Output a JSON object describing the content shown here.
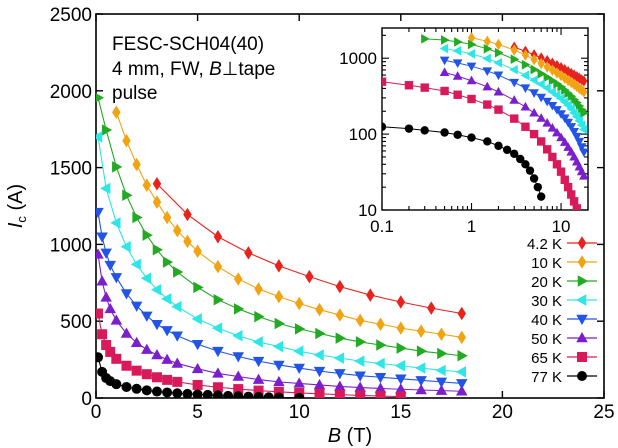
{
  "chart_data": [
    {
      "type": "line",
      "panel": "main",
      "xlabel_italic": "B",
      "xlabel_rest": " (T)",
      "ylabel_italic": "I",
      "ylabel_sub": "c",
      "ylabel_rest": " (A)",
      "xlim": [
        0,
        25
      ],
      "ylim": [
        0,
        2500
      ],
      "xticks": [
        0,
        5,
        10,
        15,
        20,
        25
      ],
      "yticks": [
        0,
        500,
        1000,
        1500,
        2000,
        2500
      ],
      "annotation": [
        "FESC-SCH04(40)",
        "4 mm, FW, ",
        "B",
        "⊥tape",
        "pulse"
      ],
      "legend_position": "bottom-right",
      "series": [
        {
          "name": "4.2 K",
          "color": "#e8231c",
          "marker": "diamond",
          "x": [
            3.0,
            4.5,
            6.0,
            7.5,
            9.0,
            10.5,
            12.0,
            13.5,
            15.0,
            16.5,
            18.0
          ],
          "y": [
            1395,
            1195,
            1050,
            945,
            860,
            790,
            725,
            670,
            625,
            585,
            550
          ]
        },
        {
          "name": "10 K",
          "color": "#f2a311",
          "marker": "diamond",
          "x": [
            1.0,
            1.5,
            2.0,
            2.5,
            3.0,
            3.5,
            4.0,
            4.5,
            5.0,
            6.0,
            7.0,
            8.0,
            9.0,
            10.0,
            11.0,
            12.0,
            13.0,
            14.0,
            15.0,
            16.0,
            17.0,
            18.0
          ],
          "y": [
            1860,
            1675,
            1520,
            1385,
            1275,
            1175,
            1090,
            1020,
            955,
            855,
            775,
            710,
            660,
            615,
            575,
            540,
            505,
            480,
            455,
            435,
            415,
            395
          ]
        },
        {
          "name": "20 K",
          "color": "#22aa22",
          "marker": "triangle-right",
          "x": [
            0.1,
            0.5,
            1.0,
            1.5,
            2.0,
            2.5,
            3.0,
            3.5,
            4.0,
            5.0,
            6.0,
            7.0,
            8.0,
            9.0,
            10.0,
            11.0,
            12.0,
            13.0,
            14.0,
            15.0,
            16.0,
            17.0,
            18.0
          ],
          "y": [
            1955,
            1745,
            1505,
            1320,
            1175,
            1060,
            965,
            885,
            820,
            720,
            640,
            580,
            530,
            485,
            450,
            420,
            390,
            365,
            345,
            325,
            305,
            290,
            275
          ]
        },
        {
          "name": "30 K",
          "color": "#2ee6e6",
          "marker": "triangle-left",
          "x": [
            0.1,
            0.5,
            1.0,
            1.5,
            2.0,
            2.5,
            3.0,
            3.5,
            4.0,
            5.0,
            6.0,
            7.0,
            8.0,
            9.0,
            10.0,
            11.0,
            12.0,
            13.0,
            14.0,
            15.0,
            16.0,
            17.0,
            18.0
          ],
          "y": [
            1700,
            1365,
            1140,
            985,
            870,
            780,
            705,
            645,
            595,
            515,
            455,
            405,
            365,
            335,
            305,
            280,
            260,
            240,
            225,
            210,
            195,
            180,
            170
          ]
        },
        {
          "name": "40 K",
          "color": "#2255e6",
          "marker": "triangle-down",
          "x": [
            0.1,
            0.3,
            0.5,
            0.7,
            1.0,
            1.5,
            2.0,
            2.5,
            3.0,
            3.5,
            4.0,
            5.0,
            6.0,
            7.0,
            8.0,
            9.0,
            10.0,
            11.0,
            12.0,
            13.0,
            14.0,
            15.0,
            16.0,
            17.0,
            18.0
          ],
          "y": [
            1210,
            1050,
            945,
            865,
            785,
            680,
            600,
            535,
            480,
            440,
            405,
            350,
            305,
            270,
            240,
            215,
            195,
            175,
            160,
            145,
            135,
            125,
            115,
            105,
            95
          ]
        },
        {
          "name": "50 K",
          "color": "#7b1fcc",
          "marker": "triangle-up",
          "x": [
            0.1,
            0.3,
            0.5,
            0.7,
            1.0,
            1.5,
            2.0,
            2.5,
            3.0,
            3.5,
            4.0,
            5.0,
            6.0,
            7.0,
            8.0,
            9.0,
            10.0,
            11.0,
            12.0,
            13.0,
            14.0,
            15.0,
            16.0,
            17.0,
            18.0
          ],
          "y": [
            935,
            760,
            655,
            580,
            505,
            420,
            360,
            315,
            280,
            250,
            225,
            190,
            160,
            140,
            120,
            105,
            95,
            85,
            75,
            68,
            62,
            57,
            52,
            48,
            44
          ]
        },
        {
          "name": "65 K",
          "color": "#d81a5a",
          "marker": "square",
          "x": [
            0.1,
            0.3,
            0.5,
            0.7,
            1.0,
            1.5,
            2.0,
            2.5,
            3.0,
            3.5,
            4.0,
            5.0,
            6.0,
            7.0,
            8.0,
            9.0,
            10.0,
            11.0,
            12.0,
            13.0,
            14.0,
            15.0
          ],
          "y": [
            550,
            415,
            345,
            300,
            255,
            210,
            178,
            155,
            135,
            118,
            105,
            85,
            70,
            58,
            48,
            40,
            33,
            27,
            22,
            17,
            13,
            9
          ]
        },
        {
          "name": "77 K",
          "color": "#000000",
          "marker": "circle",
          "x": [
            0.1,
            0.3,
            0.5,
            0.7,
            1.0,
            1.5,
            2.0,
            2.5,
            3.0,
            3.5,
            4.0,
            4.5,
            5.0,
            5.5,
            6.0,
            6.5,
            7.0,
            7.5,
            8.0,
            8.5,
            9.0,
            10.0
          ],
          "y": [
            265,
            170,
            130,
            110,
            90,
            72,
            60,
            50,
            42,
            36,
            31,
            27,
            23,
            20,
            17,
            14,
            11,
            9,
            7,
            5,
            3,
            1
          ]
        }
      ]
    },
    {
      "type": "line",
      "panel": "inset",
      "xscale": "log",
      "yscale": "log",
      "xlim": [
        0.1,
        20
      ],
      "ylim": [
        10,
        2500
      ],
      "xtick_labels": [
        "0.1",
        "1",
        "10"
      ],
      "ytick_labels": [
        "10",
        "100",
        "1000"
      ],
      "series": [
        {
          "name": "4.2 K",
          "color": "#e8231c",
          "marker": "diamond",
          "x": [
            3.0,
            4.0,
            5.0,
            6.0,
            7.0,
            8.0,
            9.0,
            10.0,
            11.0,
            12.0,
            13.0,
            14.0,
            15.0,
            16.0,
            17.0,
            18.0
          ],
          "y": [
            1395,
            1235,
            1110,
            1010,
            930,
            860,
            800,
            750,
            705,
            665,
            630,
            600,
            570,
            545,
            520,
            500
          ]
        },
        {
          "name": "10 K",
          "color": "#f2a311",
          "marker": "diamond",
          "x": [
            1.0,
            1.5,
            2.0,
            3.0,
            4.0,
            5.0,
            6.0,
            7.0,
            8.0,
            9.0,
            10.0,
            11.0,
            12.0,
            13.0,
            14.0,
            15.0,
            16.0,
            17.0,
            18.0
          ],
          "y": [
            1860,
            1670,
            1520,
            1280,
            1100,
            960,
            850,
            765,
            695,
            640,
            590,
            545,
            510,
            480,
            450,
            425,
            400,
            380,
            360
          ]
        },
        {
          "name": "20 K",
          "color": "#22aa22",
          "marker": "triangle-right",
          "x": [
            0.3,
            0.5,
            0.7,
            1.0,
            1.5,
            2.0,
            3.0,
            4.0,
            5.0,
            6.0,
            7.0,
            8.0,
            9.0,
            10.0,
            11.0,
            12.0,
            13.0,
            14.0,
            15.0,
            16.0,
            17.0,
            18.0
          ],
          "y": [
            1800,
            1740,
            1640,
            1520,
            1330,
            1180,
            970,
            820,
            710,
            625,
            560,
            505,
            460,
            420,
            380,
            345,
            315,
            285,
            260,
            235,
            210,
            190
          ]
        },
        {
          "name": "30 K",
          "color": "#2ee6e6",
          "marker": "triangle-left",
          "x": [
            0.5,
            0.7,
            1.0,
            1.5,
            2.0,
            3.0,
            4.0,
            5.0,
            6.0,
            7.0,
            8.0,
            9.0,
            10.0,
            11.0,
            12.0,
            13.0,
            14.0,
            15.0,
            16.0,
            17.0,
            18.0
          ],
          "y": [
            1340,
            1250,
            1140,
            990,
            870,
            705,
            595,
            515,
            455,
            405,
            360,
            325,
            295,
            265,
            240,
            215,
            190,
            170,
            150,
            132,
            115
          ]
        },
        {
          "name": "40 K",
          "color": "#2255e6",
          "marker": "triangle-down",
          "x": [
            0.5,
            0.7,
            1.0,
            1.5,
            2.0,
            3.0,
            4.0,
            5.0,
            6.0,
            7.0,
            8.0,
            9.0,
            10.0,
            11.0,
            12.0,
            13.0,
            14.0,
            15.0,
            16.0,
            17.0,
            18.0
          ],
          "y": [
            940,
            865,
            785,
            680,
            600,
            480,
            405,
            350,
            305,
            270,
            238,
            210,
            185,
            163,
            143,
            125,
            108,
            93,
            80,
            68,
            58
          ]
        },
        {
          "name": "50 K",
          "color": "#7b1fcc",
          "marker": "triangle-up",
          "x": [
            0.5,
            0.7,
            1.0,
            1.5,
            2.0,
            3.0,
            4.0,
            5.0,
            6.0,
            7.0,
            8.0,
            9.0,
            10.0,
            11.0,
            12.0,
            13.0,
            14.0,
            15.0,
            16.0,
            17.0,
            18.0
          ],
          "y": [
            650,
            580,
            505,
            420,
            360,
            280,
            228,
            190,
            162,
            140,
            120,
            104,
            90,
            78,
            67,
            58,
            50,
            43,
            37,
            32,
            28
          ]
        },
        {
          "name": "65 K",
          "color": "#d81a5a",
          "marker": "square",
          "x": [
            0.1,
            0.2,
            0.3,
            0.5,
            0.7,
            1.0,
            1.5,
            2.0,
            3.0,
            4.0,
            5.0,
            6.0,
            7.0,
            8.0,
            9.0,
            10.0,
            11.0,
            12.0,
            13.0,
            14.0,
            15.0
          ],
          "y": [
            490,
            440,
            410,
            370,
            330,
            290,
            245,
            210,
            160,
            125,
            100,
            80,
            63,
            50,
            40,
            32,
            25,
            20,
            16,
            13,
            10.5
          ]
        },
        {
          "name": "77 K",
          "color": "#000000",
          "marker": "circle",
          "x": [
            0.1,
            0.2,
            0.3,
            0.5,
            0.7,
            1.0,
            1.5,
            2.0,
            2.5,
            3.0,
            3.5,
            4.0,
            4.5,
            5.0,
            5.5,
            6.0
          ],
          "y": [
            125,
            118,
            112,
            105,
            98,
            90,
            80,
            70,
            62,
            55,
            47,
            40,
            33,
            26,
            20,
            15
          ]
        }
      ]
    }
  ]
}
